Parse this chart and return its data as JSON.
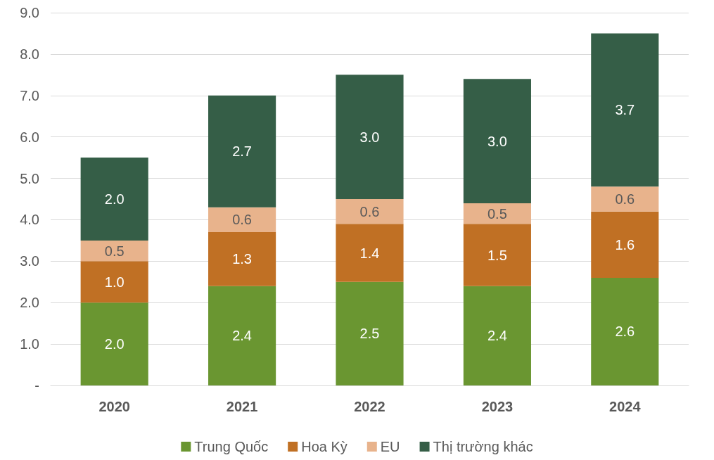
{
  "chart_data": {
    "type": "bar",
    "stacked": true,
    "categories": [
      "2020",
      "2021",
      "2022",
      "2023",
      "2024"
    ],
    "series": [
      {
        "name": "Trung Quốc",
        "color": "#6a9631",
        "values": [
          2.0,
          2.4,
          2.5,
          2.4,
          2.6
        ],
        "value_labels": [
          "2.0",
          "2.4",
          "2.5",
          "2.4",
          "2.6"
        ]
      },
      {
        "name": "Hoa Kỳ",
        "color": "#c07024",
        "values": [
          1.0,
          1.3,
          1.4,
          1.5,
          1.6
        ],
        "value_labels": [
          "1.0",
          "1.3",
          "1.4",
          "1.5",
          "1.6"
        ]
      },
      {
        "name": "EU",
        "color": "#e8b38c",
        "values": [
          0.5,
          0.6,
          0.6,
          0.5,
          0.6
        ],
        "value_labels": [
          "0.5",
          "0.6",
          "0.6",
          "0.5",
          "0.6"
        ]
      },
      {
        "name": "Thị trường khác",
        "color": "#355e47",
        "values": [
          2.0,
          2.7,
          3.0,
          3.0,
          3.7
        ],
        "value_labels": [
          "2.0",
          "2.7",
          "3.0",
          "3.0",
          "3.7"
        ]
      }
    ],
    "ylim": [
      0,
      9
    ],
    "yticks": [
      {
        "value": 0,
        "label": "-"
      },
      {
        "value": 1,
        "label": "1.0"
      },
      {
        "value": 2,
        "label": "2.0"
      },
      {
        "value": 3,
        "label": "3.0"
      },
      {
        "value": 4,
        "label": "4.0"
      },
      {
        "value": 5,
        "label": "5.0"
      },
      {
        "value": 6,
        "label": "6.0"
      },
      {
        "value": 7,
        "label": "7.0"
      },
      {
        "value": 8,
        "label": "8.0"
      },
      {
        "value": 9,
        "label": "9.0"
      }
    ],
    "grid": "y",
    "legend": "bottom"
  }
}
